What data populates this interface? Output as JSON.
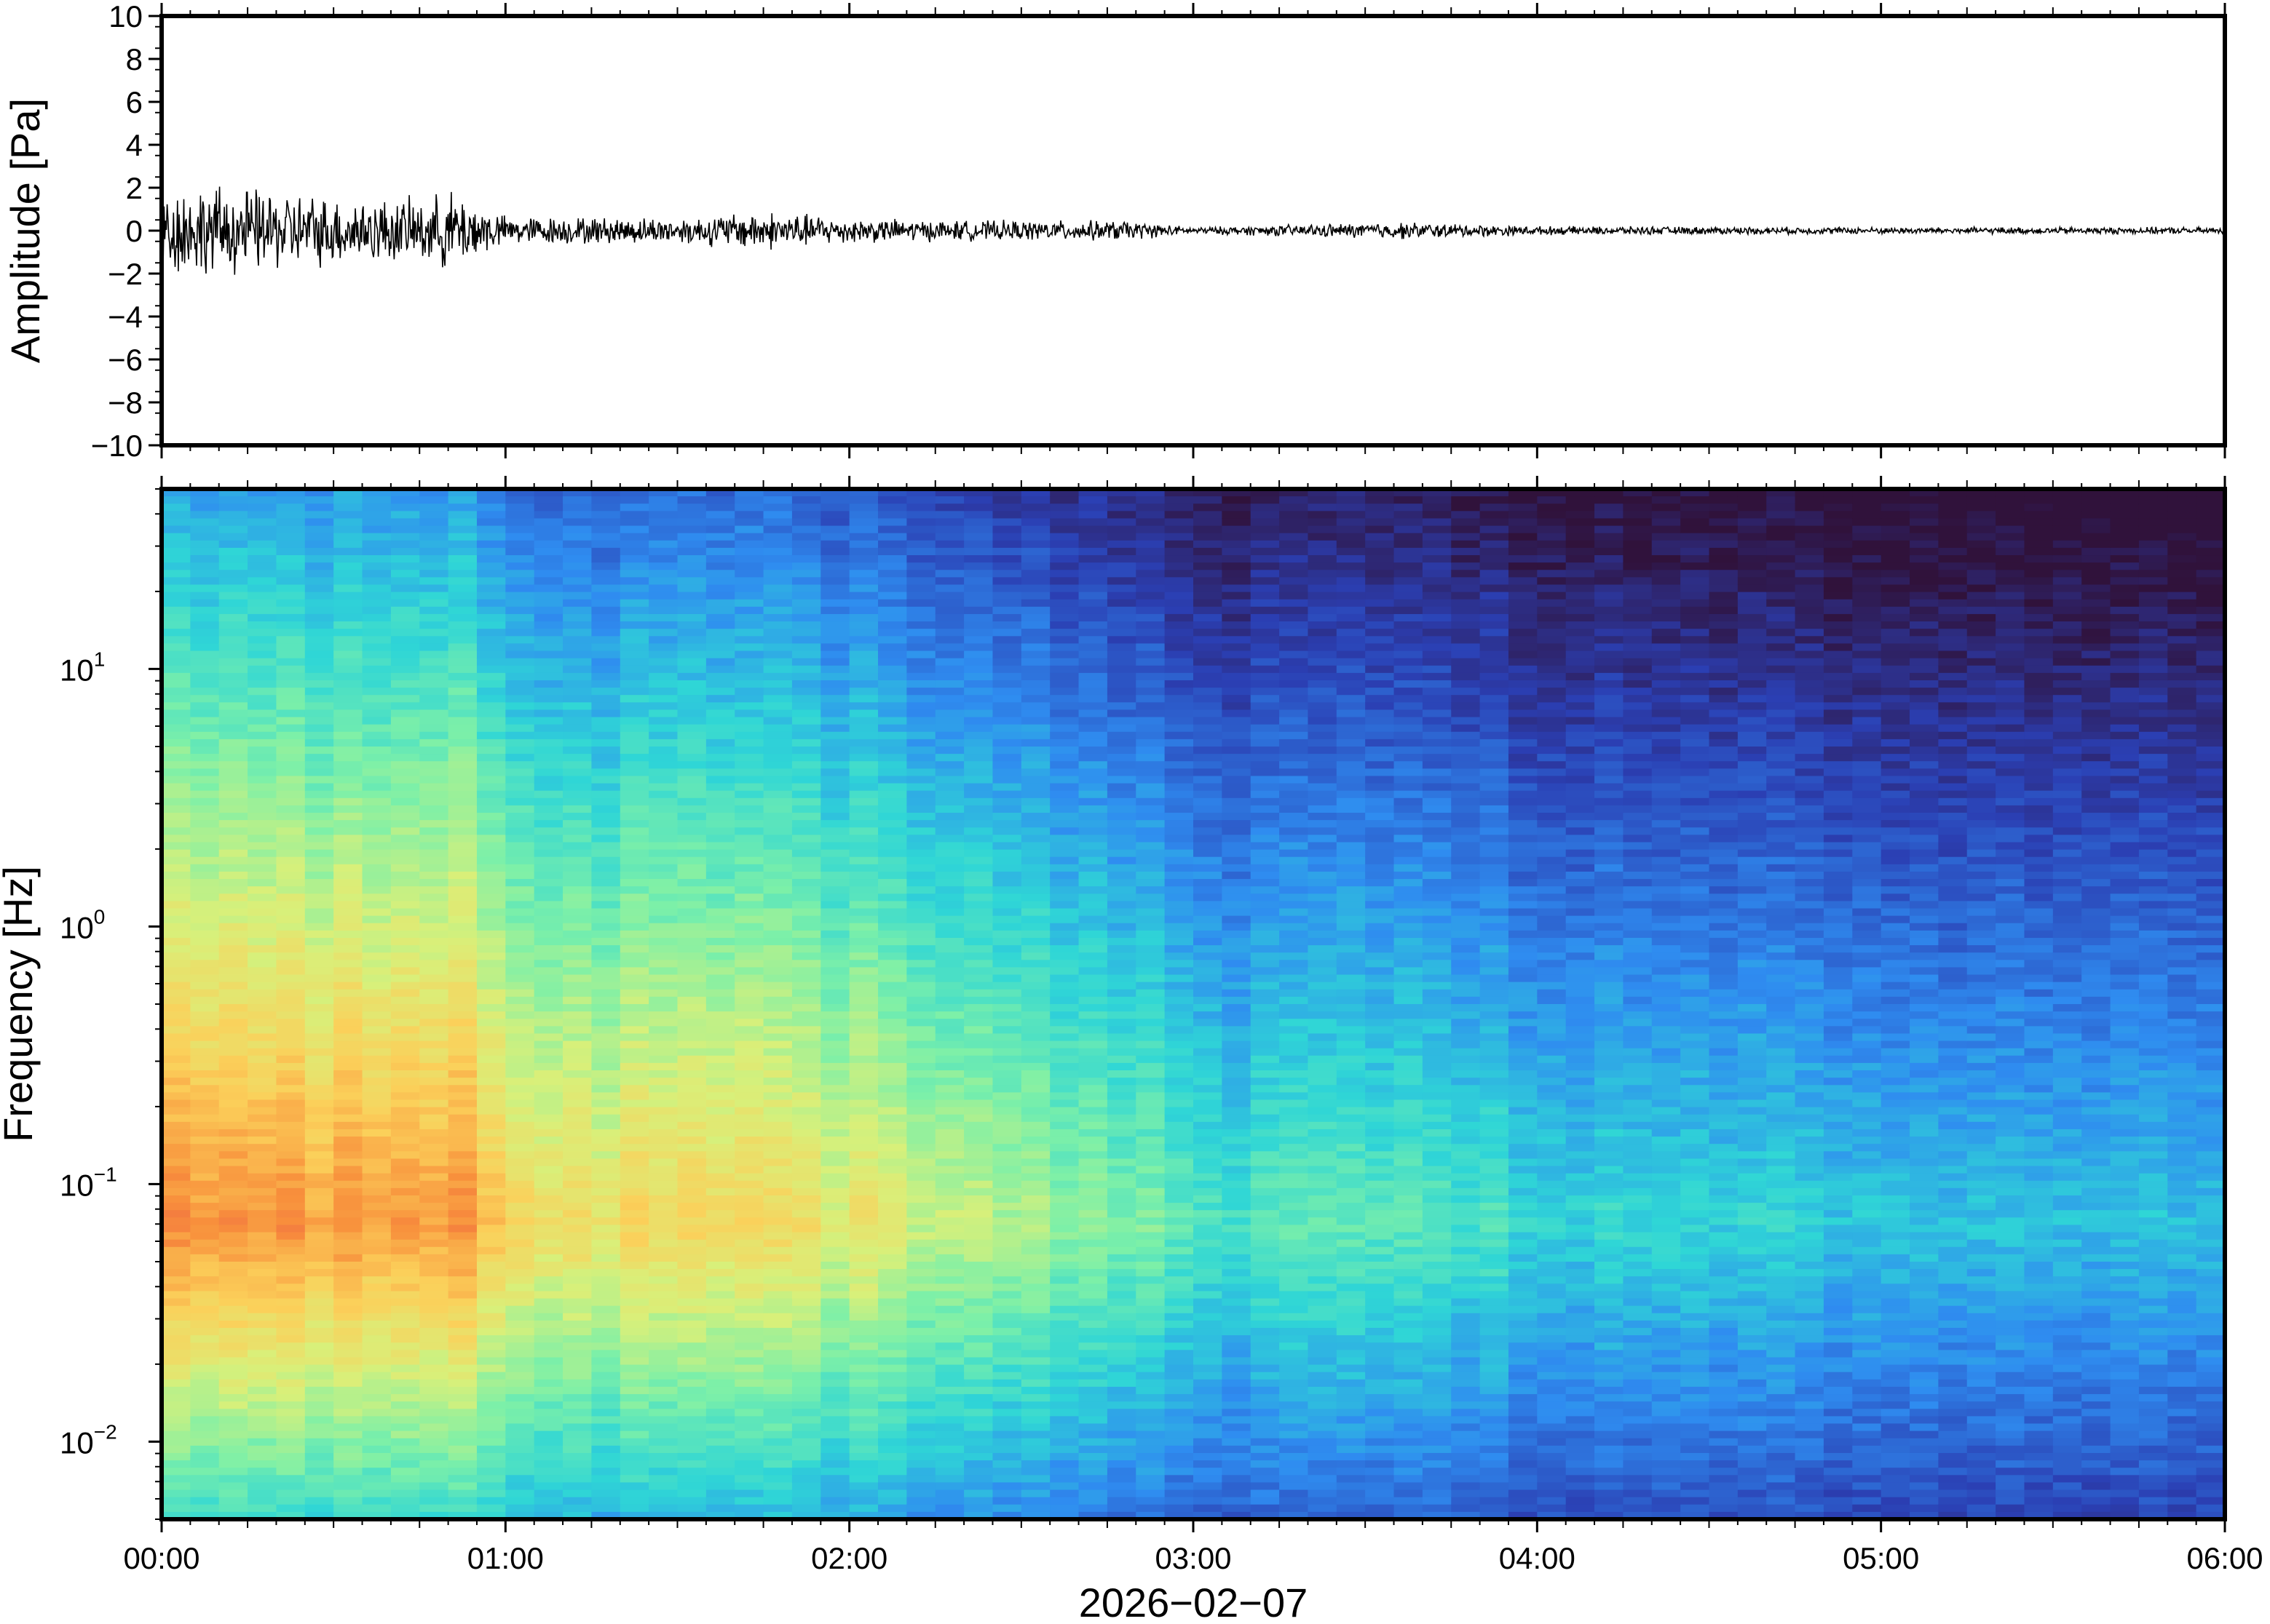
{
  "chart_data": [
    {
      "type": "line",
      "ylabel": "Amplitude [Pa]",
      "ylim": [
        -10,
        10
      ],
      "yticks": [
        "10",
        "8",
        "6",
        "4",
        "2",
        "0",
        "−2",
        "−4",
        "−6",
        "−8",
        "−10"
      ],
      "xlim_hours": [
        0,
        6
      ],
      "envelope": [
        {
          "t": 0.0,
          "amp": 1.6
        },
        {
          "t": 0.25,
          "amp": 1.5
        },
        {
          "t": 0.5,
          "amp": 1.2
        },
        {
          "t": 0.75,
          "amp": 1.1
        },
        {
          "t": 0.85,
          "amp": 1.4
        },
        {
          "t": 1.0,
          "amp": 0.5
        },
        {
          "t": 1.5,
          "amp": 0.45
        },
        {
          "t": 1.75,
          "amp": 0.7
        },
        {
          "t": 2.0,
          "amp": 0.45
        },
        {
          "t": 2.3,
          "amp": 0.35
        },
        {
          "t": 2.8,
          "amp": 0.35
        },
        {
          "t": 3.0,
          "amp": 0.12
        },
        {
          "t": 3.6,
          "amp": 0.3
        },
        {
          "t": 4.0,
          "amp": 0.15
        },
        {
          "t": 5.0,
          "amp": 0.12
        },
        {
          "t": 6.0,
          "amp": 0.12
        }
      ],
      "line_color": "#000000"
    },
    {
      "type": "heatmap",
      "ylabel": "Frequency [Hz]",
      "yscale": "log",
      "ylim_hz": [
        0.005,
        50
      ],
      "yticks": [
        {
          "value": 10,
          "base": "10",
          "exp": "1"
        },
        {
          "value": 1,
          "base": "10",
          "exp": "0"
        },
        {
          "value": 0.1,
          "base": "10",
          "exp": "−1"
        },
        {
          "value": 0.01,
          "base": "10",
          "exp": "−2"
        }
      ],
      "xlabel": "2026−02−07",
      "xticks": [
        "00:00",
        "01:00",
        "02:00",
        "03:00",
        "04:00",
        "05:00",
        "06:00"
      ],
      "colormap": [
        "#30123b",
        "#2b3fb3",
        "#2f8cf0",
        "#2fd6d6",
        "#7df0a8",
        "#d8f07a",
        "#fbd05a",
        "#f8903c",
        "#e8474a"
      ],
      "time_columns": 72,
      "peak_frequency_hz": 0.07,
      "intensity_profile": [
        {
          "t": 0.0,
          "level": 1.0
        },
        {
          "t": 0.9,
          "level": 0.95
        },
        {
          "t": 1.0,
          "level": 0.78
        },
        {
          "t": 1.75,
          "level": 0.8
        },
        {
          "t": 2.3,
          "level": 0.68
        },
        {
          "t": 2.8,
          "level": 0.58
        },
        {
          "t": 3.0,
          "level": 0.45
        },
        {
          "t": 3.6,
          "level": 0.52
        },
        {
          "t": 4.0,
          "level": 0.42
        },
        {
          "t": 5.0,
          "level": 0.38
        },
        {
          "t": 6.0,
          "level": 0.35
        }
      ]
    }
  ]
}
